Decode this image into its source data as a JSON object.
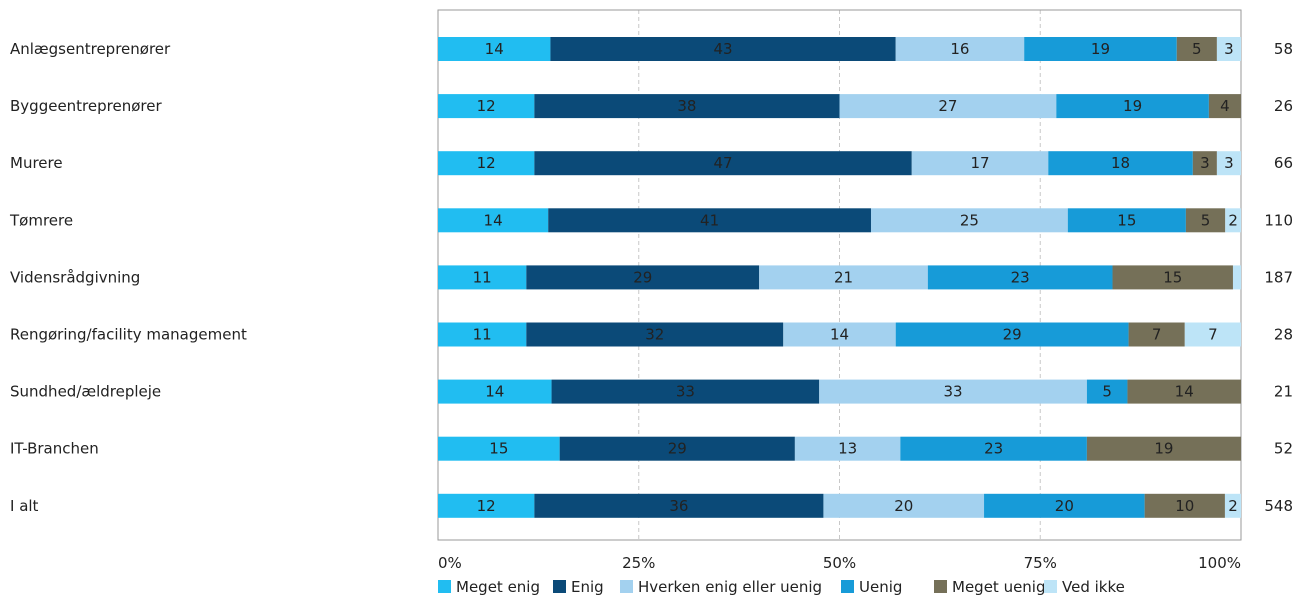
{
  "chart_data": {
    "type": "bar",
    "orientation": "horizontal",
    "stacked": true,
    "percent_stacked": true,
    "categories": [
      "Anlægsentreprenører",
      "Byggeentreprenører",
      "Murere",
      "Tømrere",
      "Vidensrådgivning",
      "Rengøring/facility management",
      "Sundhed/ældrepleje",
      "IT-Branchen",
      "I alt"
    ],
    "n": [
      "58",
      "26",
      "66",
      "110",
      "187",
      "28",
      "21",
      "52",
      "548"
    ],
    "series": [
      {
        "name": "Meget enig",
        "color": "#21bdf1",
        "values": [
          14,
          12,
          12,
          14,
          11,
          11,
          14,
          15,
          12
        ],
        "labels": [
          "14",
          "12",
          "12",
          "14",
          "11",
          "11",
          "14",
          "15",
          "12"
        ]
      },
      {
        "name": "Enig",
        "color": "#0b4a78",
        "values": [
          43,
          38,
          47,
          41,
          29,
          32,
          33,
          29,
          36
        ],
        "labels": [
          "43",
          "38",
          "47",
          "41",
          "29",
          "32",
          "33",
          "29",
          "36"
        ]
      },
      {
        "name": "Hverken enig eller uenig",
        "color": "#a3d1ef",
        "values": [
          16,
          27,
          17,
          25,
          21,
          14,
          33,
          13,
          20
        ],
        "labels": [
          "16",
          "27",
          "17",
          "25",
          "21",
          "14",
          "33",
          "13",
          "20"
        ]
      },
      {
        "name": "Uenig",
        "color": "#179bd8",
        "values": [
          19,
          19,
          18,
          15,
          23,
          29,
          5,
          23,
          20
        ],
        "labels": [
          "19",
          "19",
          "18",
          "15",
          "23",
          "29",
          "5",
          "23",
          "20"
        ]
      },
      {
        "name": "Meget uenig",
        "color": "#757058",
        "values": [
          5,
          4,
          3,
          5,
          15,
          7,
          14,
          19,
          10
        ],
        "labels": [
          "5",
          "4",
          "3",
          "5",
          "15",
          "7",
          "14",
          "19",
          "10"
        ]
      },
      {
        "name": "Ved ikke",
        "color": "#bde4f7",
        "values": [
          3,
          0,
          3,
          2,
          1,
          7,
          0,
          0,
          2
        ],
        "labels": [
          "3",
          "",
          "3",
          "2",
          "",
          "7",
          "",
          "",
          "2"
        ]
      }
    ],
    "x_ticks": [
      "0%",
      "25%",
      "50%",
      "75%",
      "100%"
    ],
    "xlim": [
      0,
      100
    ],
    "grid": "vertical dashed",
    "legend": "bottom"
  }
}
